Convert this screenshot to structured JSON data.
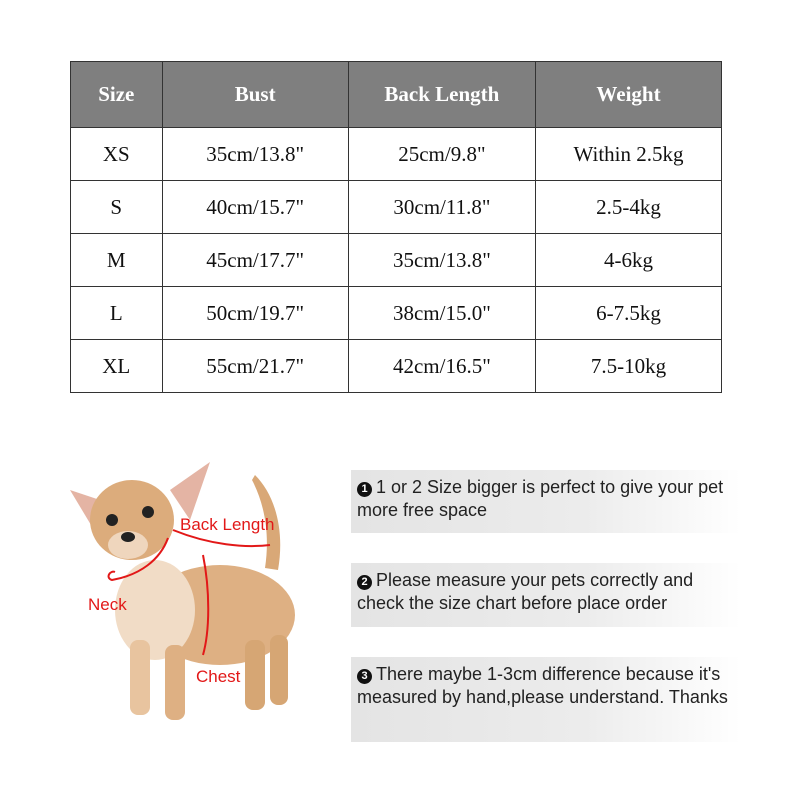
{
  "size_table": {
    "headers": [
      "Size",
      "Bust",
      "Back Length",
      "Weight"
    ],
    "rows": [
      [
        "XS",
        "35cm/13.8\"",
        "25cm/9.8\"",
        "Within 2.5kg"
      ],
      [
        "S",
        "40cm/15.7\"",
        "30cm/11.8\"",
        "2.5-4kg"
      ],
      [
        "M",
        "45cm/17.7\"",
        "35cm/13.8\"",
        "4-6kg"
      ],
      [
        "L",
        "50cm/19.7\"",
        "38cm/15.0\"",
        "6-7.5kg"
      ],
      [
        "XL",
        "55cm/21.7\"",
        "42cm/16.5\"",
        "7.5-10kg"
      ]
    ],
    "header_color": "#7f7f7f"
  },
  "diagram": {
    "labels": {
      "back_length": "Back Length",
      "neck": "Neck",
      "chest": "Chest"
    },
    "label_color": "#e21818"
  },
  "notes": [
    {
      "number": "1",
      "text": "1 or 2 Size bigger is perfect to give your pet more free space"
    },
    {
      "number": "2",
      "text": "Please measure your pets correctly and check the size chart before place order"
    },
    {
      "number": "3",
      "text": "There maybe 1-3cm difference because it's measured by hand,please understand. Thanks"
    }
  ]
}
